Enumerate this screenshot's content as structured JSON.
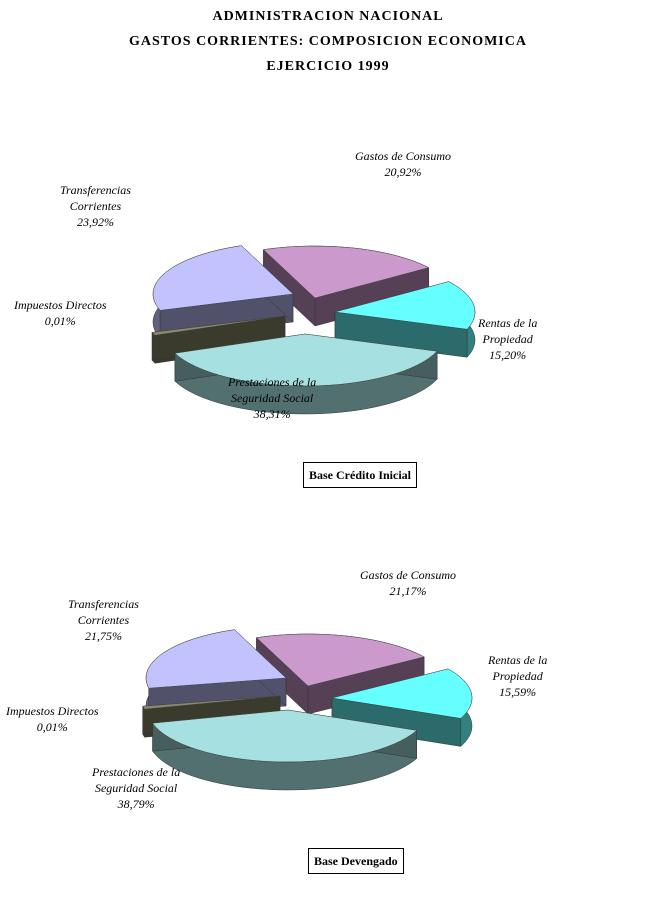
{
  "titles": {
    "line1": "ADMINISTRACION NACIONAL",
    "line2": "GASTOS CORRIENTES: COMPOSICION ECONOMICA",
    "line3": "EJERCICIO 1999"
  },
  "colors": {
    "gastos_consumo": "#cc99cc",
    "rentas_propiedad": "#66ffff",
    "prestaciones": "#a6e0e0",
    "impuestos": "#8a8a6a",
    "transferencias": "#c2c2ff"
  },
  "chart_data": [
    {
      "type": "pie",
      "title": "Base Crédito Inicial",
      "slices": [
        {
          "label_l1": "Gastos de  Consumo",
          "label_l2": "",
          "pct_label": "20,92%",
          "value": 20.92
        },
        {
          "label_l1": "Rentas de la",
          "label_l2": "Propiedad",
          "pct_label": "15,20%",
          "value": 15.2
        },
        {
          "label_l1": "Prestaciones de la",
          "label_l2": "Seguridad Social",
          "pct_label": "38,31%",
          "value": 38.31
        },
        {
          "label_l1": "Impuestos Directos",
          "label_l2": "",
          "pct_label": "0,01%",
          "value": 0.01
        },
        {
          "label_l1": "Transferencias",
          "label_l2": "Corrientes",
          "pct_label": "23,92%",
          "value": 23.92
        }
      ]
    },
    {
      "type": "pie",
      "title": "Base Devengado",
      "slices": [
        {
          "label_l1": "Gastos de  Consumo",
          "label_l2": "",
          "pct_label": "21,17%",
          "value": 21.17
        },
        {
          "label_l1": "Rentas de la",
          "label_l2": "Propiedad",
          "pct_label": "15,59%",
          "value": 15.59
        },
        {
          "label_l1": "Prestaciones de la",
          "label_l2": "Seguridad Social",
          "pct_label": "38,79%",
          "value": 38.79
        },
        {
          "label_l1": "Impuestos Directos",
          "label_l2": "",
          "pct_label": "0,01%",
          "value": 0.01
        },
        {
          "label_l1": "Transferencias",
          "label_l2": "Corrientes",
          "pct_label": "21,75%",
          "value": 21.75
        }
      ]
    }
  ]
}
